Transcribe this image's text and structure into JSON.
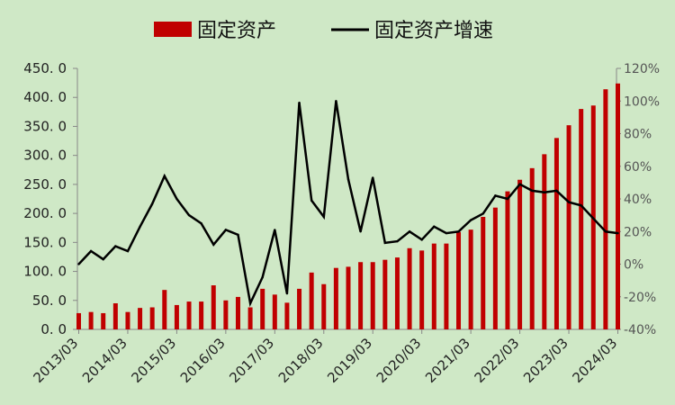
{
  "chart_data": {
    "type": "bar+line",
    "title": "",
    "xlabel": "",
    "ylabel": "",
    "legend_position": "top-center",
    "grid": false,
    "colors": {
      "bar": "#c00000",
      "line": "#000000",
      "background": "#cfe8c6",
      "axis": "#888888"
    },
    "x_tick_labels": [
      "2013/03",
      "2014/03",
      "2015/03",
      "2016/03",
      "2017/03",
      "2018/03",
      "2019/03",
      "2020/03",
      "2021/03",
      "2022/03",
      "2023/03",
      "2024/03"
    ],
    "y_left": {
      "range": [
        0,
        450
      ],
      "ticks": [
        "0. 0",
        "50. 0",
        "100. 0",
        "150. 0",
        "200. 0",
        "250. 0",
        "300. 0",
        "350. 0",
        "400. 0",
        "450. 0"
      ]
    },
    "y_right": {
      "range": [
        -40,
        120
      ],
      "ticks": [
        "-40%",
        "-20%",
        "0%",
        "20%",
        "40%",
        "60%",
        "80%",
        "100%",
        "120%"
      ]
    },
    "series": [
      {
        "name": "固定资产",
        "type": "bar",
        "axis": "left",
        "values": [
          28,
          30,
          28,
          45,
          30,
          37,
          38,
          68,
          42,
          48,
          48,
          76,
          50,
          56,
          38,
          70,
          60,
          46,
          70,
          98,
          78,
          106,
          108,
          116,
          116,
          120,
          124,
          140,
          136,
          148,
          148,
          168,
          172,
          194,
          210,
          238,
          258,
          278,
          302,
          330,
          352,
          380,
          386,
          414,
          424
        ]
      },
      {
        "name": "固定资产增速",
        "type": "line",
        "axis": "right",
        "values": [
          0,
          8,
          3,
          11,
          8,
          23,
          37,
          54,
          40,
          30,
          25,
          12,
          21,
          18,
          -24,
          -8,
          21,
          -18,
          99,
          39,
          29,
          100,
          52,
          20,
          53,
          13,
          14,
          20,
          15,
          23,
          19,
          20,
          27,
          31,
          42,
          40,
          49,
          45,
          44,
          45,
          38,
          36,
          28,
          20,
          19
        ]
      }
    ]
  }
}
